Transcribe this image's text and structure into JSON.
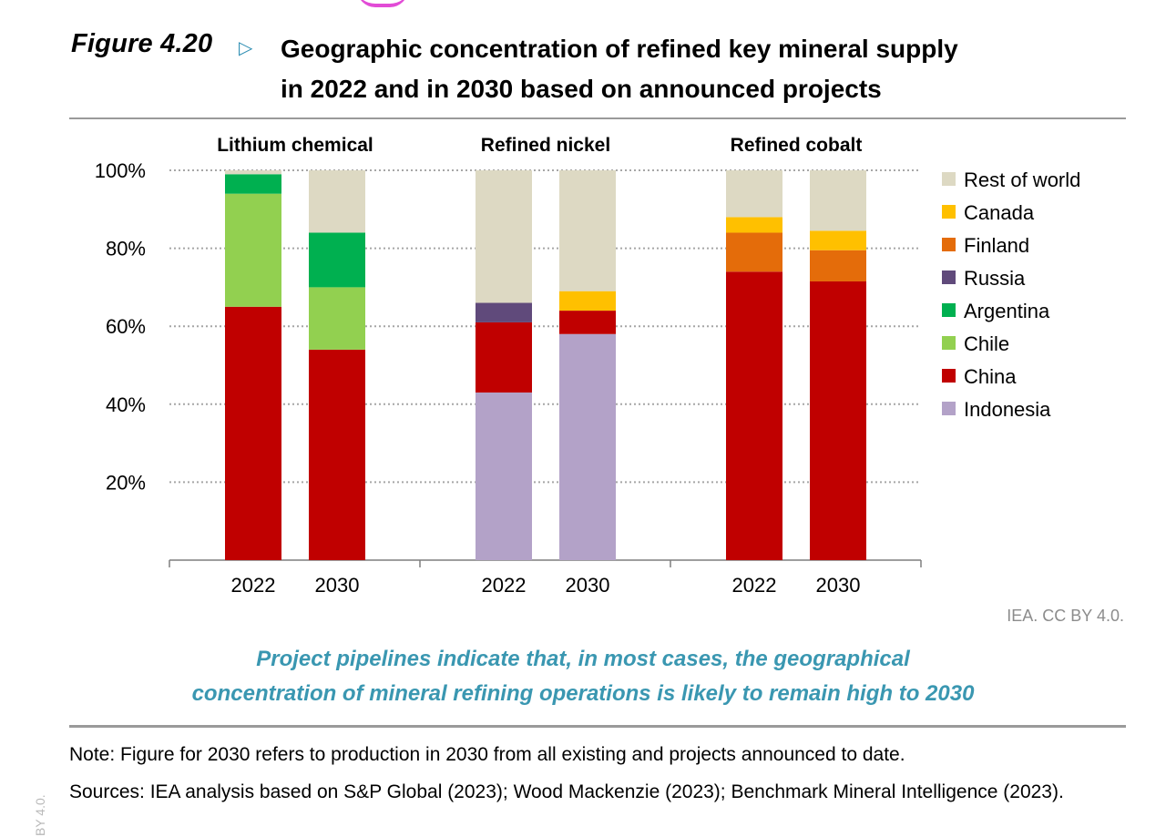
{
  "figure": {
    "number": "Figure 4.20",
    "title_line1": "Geographic concentration of refined key mineral supply",
    "title_line2": "in 2022 and in 2030 based on announced projects"
  },
  "credit": "IEA. CC BY 4.0.",
  "takeaway_line1": "Project pipelines indicate that, in most cases, the geographical",
  "takeaway_line2": "concentration of mineral refining operations is likely to remain high to 2030",
  "note": "Note:  Figure for 2030 refers to production in 2030 from all existing and projects announced to date.",
  "sources": "Sources: IEA analysis based on S&P Global (2023); Wood Mackenzie (2023); Benchmark Mineral Intelligence (2023).",
  "side_mark": "BY 4.0.",
  "colors": {
    "Indonesia": "#b3a2c8",
    "China": "#c00000",
    "Chile": "#92d050",
    "Argentina": "#00b050",
    "Russia": "#604a7b",
    "Finland": "#e46c0a",
    "Canada": "#ffc000",
    "Rest of world": "#ddd9c3"
  },
  "chart_data": {
    "type": "bar",
    "stacked": true,
    "ylim": [
      0,
      100
    ],
    "y_ticks": [
      "20%",
      "40%",
      "60%",
      "80%",
      "100%"
    ],
    "y_tick_values": [
      20,
      40,
      60,
      80,
      100
    ],
    "grid": "dotted horizontal",
    "legend_position": "right",
    "legend": [
      "Rest of world",
      "Canada",
      "Finland",
      "Russia",
      "Argentina",
      "Chile",
      "China",
      "Indonesia"
    ],
    "groups": [
      {
        "name": "Lithium chemical",
        "bars": [
          {
            "label": "2022",
            "segments": {
              "Indonesia": 0,
              "China": 65,
              "Chile": 29,
              "Argentina": 5,
              "Russia": 0,
              "Finland": 0,
              "Canada": 0,
              "Rest of world": 1
            }
          },
          {
            "label": "2030",
            "segments": {
              "Indonesia": 0,
              "China": 54,
              "Chile": 16,
              "Argentina": 14,
              "Russia": 0,
              "Finland": 0,
              "Canada": 0,
              "Rest of world": 16
            }
          }
        ]
      },
      {
        "name": "Refined nickel",
        "bars": [
          {
            "label": "2022",
            "segments": {
              "Indonesia": 43,
              "China": 18,
              "Chile": 0,
              "Argentina": 0,
              "Russia": 5,
              "Finland": 0,
              "Canada": 0,
              "Rest of world": 34
            }
          },
          {
            "label": "2030",
            "segments": {
              "Indonesia": 58,
              "China": 6,
              "Chile": 0,
              "Argentina": 0,
              "Russia": 0,
              "Finland": 0,
              "Canada": 5,
              "Rest of world": 31
            }
          }
        ]
      },
      {
        "name": "Refined cobalt",
        "bars": [
          {
            "label": "2022",
            "segments": {
              "Indonesia": 0,
              "China": 74,
              "Chile": 0,
              "Argentina": 0,
              "Russia": 0,
              "Finland": 10,
              "Canada": 4,
              "Rest of world": 12
            }
          },
          {
            "label": "2030",
            "segments": {
              "Indonesia": 0,
              "China": 71.5,
              "Chile": 0,
              "Argentina": 0,
              "Russia": 0,
              "Finland": 8,
              "Canada": 5,
              "Rest of world": 15.5
            }
          }
        ]
      }
    ]
  }
}
